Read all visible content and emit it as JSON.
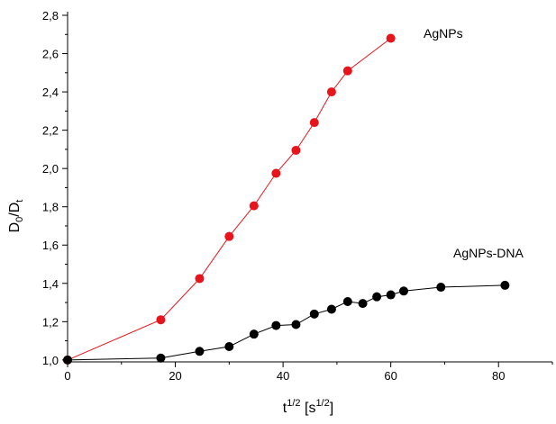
{
  "chart_data": {
    "type": "scatter",
    "xlabel": "t1/2 [s1/2]",
    "ylabel": "D0/Dt",
    "xlim": [
      0,
      90
    ],
    "ylim": [
      0.99,
      2.8
    ],
    "x_ticks": [
      0,
      20,
      40,
      60,
      80
    ],
    "x_tick_labels": [
      "0",
      "20",
      "40",
      "60",
      "80"
    ],
    "y_ticks": [
      1.0,
      1.2,
      1.4,
      1.6,
      1.8,
      2.0,
      2.2,
      2.4,
      2.6,
      2.8
    ],
    "y_tick_labels": [
      "1,0",
      "1,2",
      "1,4",
      "1,6",
      "1,8",
      "2,0",
      "2,2",
      "2,4",
      "2,6",
      "2,8"
    ],
    "grid": false,
    "legend": "none",
    "series": [
      {
        "name": "AgNPs",
        "color": "#e8141c",
        "line": true,
        "x": [
          0,
          17.3,
          24.5,
          30.0,
          34.6,
          38.7,
          42.4,
          45.8,
          49.0,
          52.0,
          60.0
        ],
        "y": [
          1.0,
          1.21,
          1.425,
          1.645,
          1.805,
          1.975,
          2.095,
          2.24,
          2.4,
          2.51,
          2.68
        ]
      },
      {
        "name": "AgNPs-DNA",
        "color": "#000000",
        "line": true,
        "x": [
          0,
          17.3,
          24.5,
          30.0,
          34.6,
          38.7,
          42.4,
          45.8,
          49.0,
          52.0,
          54.8,
          57.4,
          60.0,
          62.4,
          69.3,
          81.2
        ],
        "y": [
          1.0,
          1.01,
          1.045,
          1.07,
          1.135,
          1.18,
          1.185,
          1.24,
          1.265,
          1.305,
          1.295,
          1.33,
          1.34,
          1.36,
          1.38,
          1.39
        ]
      }
    ],
    "annotations": [
      {
        "text": "AgNPs",
        "series": 0
      },
      {
        "text": "AgNPs-DNA",
        "series": 1
      }
    ],
    "axis_labels": {
      "x": {
        "base": "t",
        "sup1": "1/2",
        "mid": " [s",
        "sup2": "1/2",
        "end": "]"
      },
      "y": {
        "base": "D",
        "sub1": "0",
        "mid": "/D",
        "sub2": "t"
      }
    }
  }
}
